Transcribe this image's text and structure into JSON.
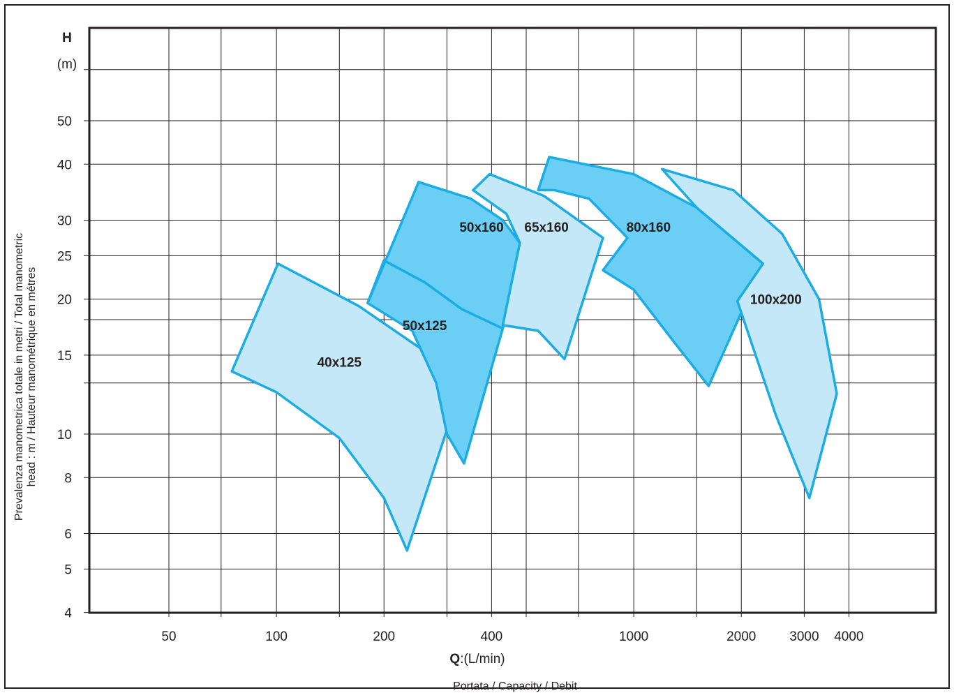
{
  "chart_data": {
    "type": "area",
    "title": "",
    "x_axis": {
      "symbol": "Q",
      "unit_label": ":(L/min)",
      "caption": "Portata / Capacity / Debit",
      "scale": "log",
      "range": [
        20,
        5000
      ],
      "tick_labels": [
        50,
        100,
        200,
        400,
        1000,
        2000,
        3000,
        4000
      ],
      "gridlines": [
        50,
        70,
        100,
        150,
        200,
        300,
        400,
        500,
        700,
        1000,
        1500,
        2000,
        3000,
        4000
      ]
    },
    "y_axis": {
      "symbol": "H",
      "unit_label": "(m)",
      "label_line1": "Prevalenza manometrica totale in metri  / Total  manometric",
      "label_line2": "head : m  / Hauteur manométrique en métres",
      "scale": "log",
      "range": [
        4,
        70
      ],
      "tick_labels": [
        4,
        5,
        6,
        8,
        10,
        15,
        20,
        25,
        30,
        40,
        50
      ],
      "gridlines": [
        4,
        5,
        6,
        8,
        10,
        13,
        15,
        18,
        20,
        25,
        30,
        40,
        50,
        65
      ]
    },
    "grid": true,
    "colors": {
      "light_fill": "#c5e8f8",
      "dark_fill": "#6bcef4",
      "outline": "#1aace2",
      "grid": "#231f20"
    },
    "series": [
      {
        "name": "40x125",
        "shade": "light",
        "outline": [
          [
            75,
            13.8
          ],
          [
            101,
            24
          ],
          [
            170,
            19.3
          ],
          [
            260,
            15.3
          ],
          [
            325,
            12.4
          ],
          [
            232,
            5.5
          ],
          [
            200,
            7.2
          ],
          [
            150,
            9.8
          ],
          [
            100,
            12.4
          ]
        ],
        "label_at": [
          150,
          14.5
        ]
      },
      {
        "name": "50x125",
        "shade": "dark",
        "outline": [
          [
            180,
            19.6
          ],
          [
            200,
            24.4
          ],
          [
            300,
            22
          ],
          [
            380,
            19
          ],
          [
            430,
            17.2
          ],
          [
            335,
            8.6
          ],
          [
            300,
            10
          ],
          [
            280,
            13
          ],
          [
            240,
            17
          ],
          [
            180,
            19.6
          ]
        ],
        "label_at": [
          260,
          17.5
        ]
      },
      {
        "name": "50x160",
        "shade": "dark",
        "outline": [
          [
            180,
            19.6
          ],
          [
            250,
            36.5
          ],
          [
            350,
            33.5
          ],
          [
            430,
            30
          ],
          [
            480,
            26.7
          ],
          [
            430,
            17.2
          ],
          [
            330,
            19
          ],
          [
            260,
            21.8
          ],
          [
            200,
            24.4
          ]
        ],
        "label_at": [
          375,
          29
        ]
      },
      {
        "name": "65x160",
        "shade": "light",
        "outline": [
          [
            355,
            35
          ],
          [
            395,
            38
          ],
          [
            560,
            34
          ],
          [
            820,
            27.4
          ],
          [
            640,
            14.7
          ],
          [
            540,
            17
          ],
          [
            430,
            17.5
          ],
          [
            480,
            26.7
          ],
          [
            440,
            31
          ],
          [
            355,
            35
          ]
        ],
        "label_at": [
          570,
          29
        ]
      },
      {
        "name": "80x160",
        "shade": "dark",
        "outline": [
          [
            540,
            35
          ],
          [
            580,
            41.5
          ],
          [
            1000,
            38
          ],
          [
            1500,
            32
          ],
          [
            2300,
            24
          ],
          [
            1620,
            12.8
          ],
          [
            1300,
            16
          ],
          [
            1000,
            21
          ],
          [
            820,
            23.2
          ],
          [
            960,
            27.4
          ],
          [
            750,
            33.5
          ],
          [
            600,
            35
          ]
        ],
        "label_at": [
          1100,
          29
        ]
      },
      {
        "name": "100x200",
        "shade": "light",
        "outline": [
          [
            1200,
            39
          ],
          [
            1900,
            35
          ],
          [
            2600,
            28
          ],
          [
            3300,
            20
          ],
          [
            3700,
            12.3
          ],
          [
            3100,
            7.2
          ],
          [
            2500,
            11
          ],
          [
            1950,
            19.8
          ],
          [
            2300,
            24
          ],
          [
            1500,
            32
          ],
          [
            1200,
            39
          ]
        ],
        "label_at": [
          2500,
          20
        ]
      }
    ]
  }
}
